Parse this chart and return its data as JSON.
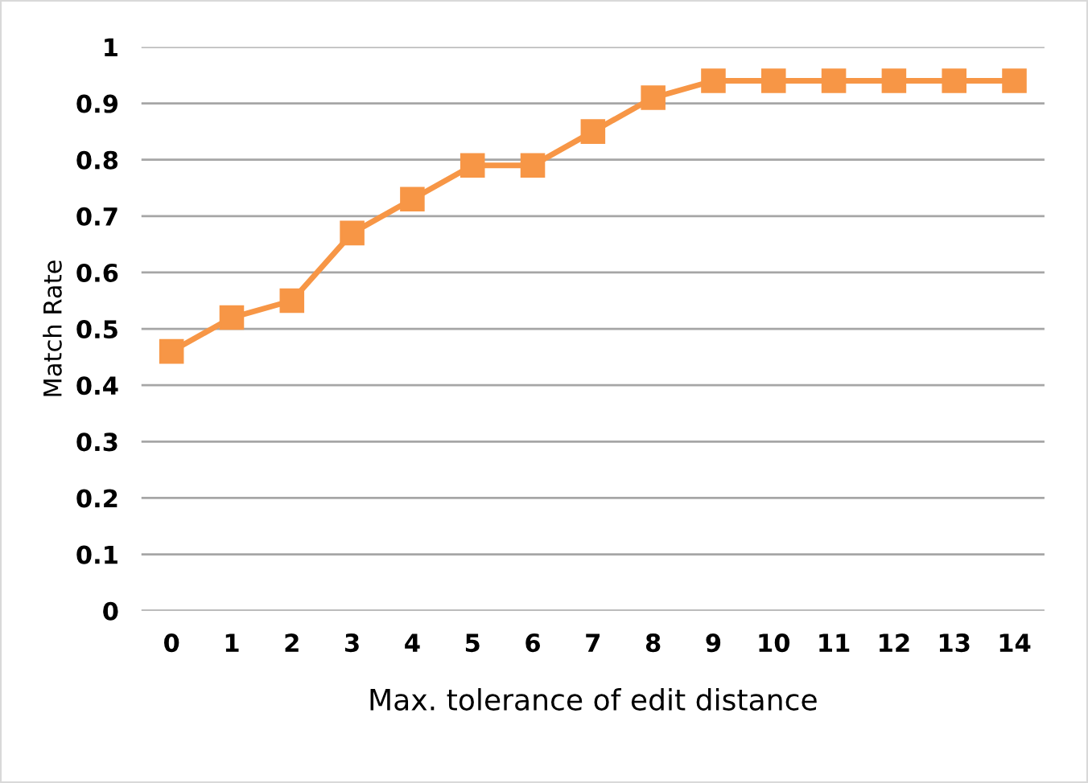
{
  "chart_data": {
    "type": "line",
    "xlabel": "Max. tolerance of edit distance",
    "ylabel": "Match Rate",
    "categories": [
      "0",
      "1",
      "2",
      "3",
      "4",
      "5",
      "6",
      "7",
      "8",
      "9",
      "10",
      "11",
      "12",
      "13",
      "14"
    ],
    "series": [
      {
        "color": "#f79646",
        "values": [
          0.46,
          0.52,
          0.55,
          0.67,
          0.73,
          0.79,
          0.79,
          0.85,
          0.91,
          0.94,
          0.94,
          0.94,
          0.94,
          0.94,
          0.94
        ]
      }
    ],
    "ylim": [
      0,
      1
    ],
    "yticks": [
      0,
      0.1,
      0.2,
      0.3,
      0.4,
      0.5,
      0.6,
      0.7,
      0.8,
      0.9,
      1
    ],
    "grid": "y",
    "marker": "square",
    "line_style": "solid",
    "legend": false
  }
}
